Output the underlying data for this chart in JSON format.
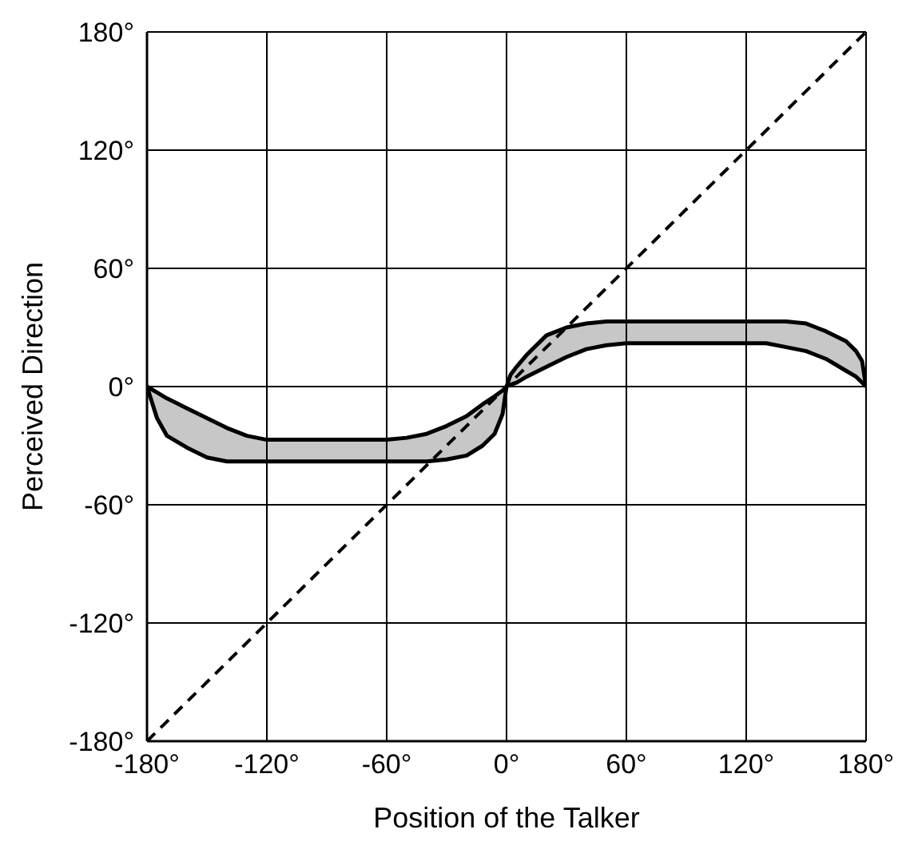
{
  "chart_data": {
    "type": "line",
    "xlabel": "Position of the Talker",
    "ylabel": "Perceived Direction",
    "xlim": [
      -180,
      180
    ],
    "ylim": [
      -180,
      180
    ],
    "xticks": [
      {
        "value": -180,
        "label": "-180°"
      },
      {
        "value": -120,
        "label": "-120°"
      },
      {
        "value": -60,
        "label": "-60°"
      },
      {
        "value": 0,
        "label": "0°"
      },
      {
        "value": 60,
        "label": "60°"
      },
      {
        "value": 120,
        "label": "120°"
      },
      {
        "value": 180,
        "label": "180°"
      }
    ],
    "yticks": [
      {
        "value": -180,
        "label": "-180°"
      },
      {
        "value": -120,
        "label": "-120°"
      },
      {
        "value": -60,
        "label": "-60°"
      },
      {
        "value": 0,
        "label": "0°"
      },
      {
        "value": 60,
        "label": "60°"
      },
      {
        "value": 120,
        "label": "120°"
      },
      {
        "value": 180,
        "label": "180°"
      }
    ],
    "grid": true,
    "legend": false,
    "series": [
      {
        "color": "#000000",
        "x": [
          -180,
          -175,
          -170,
          -160,
          -150,
          -140,
          -130,
          -120,
          -60,
          -50,
          -40,
          -30,
          -20,
          -12,
          -6,
          -2,
          0,
          2,
          5,
          10,
          20,
          30,
          40,
          50,
          60,
          120,
          130,
          140,
          150,
          160,
          170,
          175,
          178,
          180
        ],
        "upper": [
          0,
          -3,
          -6,
          -11,
          -16,
          -21,
          -25,
          -27,
          -27,
          -26,
          -24,
          -20,
          -15,
          -9,
          -5,
          -2,
          0,
          6,
          10,
          16,
          26,
          30,
          32,
          33,
          33,
          33,
          33,
          33,
          32,
          28,
          23,
          18,
          13,
          0
        ],
        "values": [
          0,
          -3,
          -6,
          -11,
          -16,
          -21,
          -25,
          -27,
          -27,
          -26,
          -24,
          -20,
          -15,
          -9,
          -5,
          -2,
          0,
          6,
          10,
          16,
          26,
          30,
          32,
          33,
          33,
          33,
          33,
          33,
          32,
          28,
          23,
          18,
          13,
          0
        ],
        "lower": [
          0,
          -16,
          -25,
          -31,
          -36,
          -38,
          -38,
          -38,
          -38,
          -38,
          -38,
          -37,
          -35,
          -30,
          -24,
          -14,
          0,
          1,
          2,
          5,
          10,
          15,
          19,
          21,
          22,
          22,
          22,
          20,
          18,
          14,
          8,
          5,
          2,
          0
        ]
      },
      {
        "color": "#000000",
        "x": [
          -180,
          -175,
          -170,
          -160,
          -150,
          -140,
          -130,
          -120,
          -60,
          -50,
          -40,
          -30,
          -20,
          -12,
          -6,
          -2,
          0,
          2,
          5,
          10,
          20,
          30,
          40,
          50,
          60,
          120,
          130,
          140,
          150,
          160,
          170,
          175,
          178,
          180
        ],
        "values": [
          0,
          -16,
          -25,
          -31,
          -36,
          -38,
          -38,
          -38,
          -38,
          -38,
          -38,
          -37,
          -35,
          -30,
          -24,
          -14,
          0,
          1,
          2,
          5,
          10,
          15,
          19,
          21,
          22,
          22,
          22,
          20,
          18,
          14,
          8,
          5,
          2,
          0
        ]
      },
      {
        "color": "#000000",
        "line_style": "dashed",
        "marker": "none",
        "x": [
          -180,
          180
        ],
        "values": [
          -180,
          180
        ]
      }
    ]
  }
}
